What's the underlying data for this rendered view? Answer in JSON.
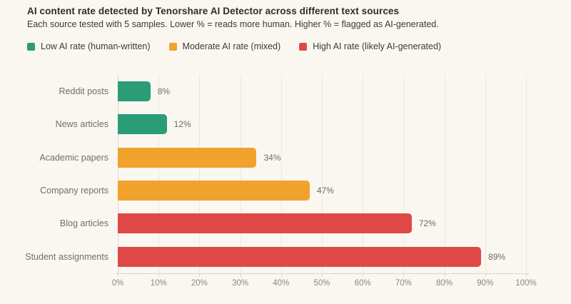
{
  "header": {
    "title": "AI content rate detected by Tenorshare AI Detector across different text sources",
    "subtitle": "Each source tested with 5 samples. Lower % = reads more human. Higher % = flagged as AI-generated."
  },
  "legend": [
    {
      "label": "Low AI rate (human-written)",
      "color": "#2a9d78"
    },
    {
      "label": "Moderate AI rate (mixed)",
      "color": "#f0a22c"
    },
    {
      "label": "High AI rate (likely AI-generated)",
      "color": "#e04848"
    }
  ],
  "colors": {
    "background": "#faf7f1",
    "low": "#2a9d78",
    "moderate": "#f0a22c",
    "high": "#e04848"
  },
  "chart_data": {
    "type": "bar",
    "orientation": "horizontal",
    "title": "AI content rate detected by Tenorshare AI Detector across different text sources",
    "subtitle": "Each source tested with 5 samples. Lower % = reads more human. Higher % = flagged as AI-generated.",
    "categories": [
      "Reddit posts",
      "News articles",
      "Academic papers",
      "Company reports",
      "Blog articles",
      "Student assignments"
    ],
    "values": [
      8,
      12,
      34,
      47,
      72,
      89
    ],
    "value_labels": [
      "8%",
      "12%",
      "34%",
      "47%",
      "72%",
      "89%"
    ],
    "bar_colors": [
      "#2a9d78",
      "#2a9d78",
      "#f0a22c",
      "#f0a22c",
      "#e04848",
      "#e04848"
    ],
    "bar_series": [
      "Low AI rate (human-written)",
      "Low AI rate (human-written)",
      "Moderate AI rate (mixed)",
      "Moderate AI rate (mixed)",
      "High AI rate (likely AI-generated)",
      "High AI rate (likely AI-generated)"
    ],
    "xlabel": "",
    "ylabel": "",
    "xlim": [
      0,
      100
    ],
    "x_tick_step": 10,
    "x_ticks": [
      "0%",
      "10%",
      "20%",
      "30%",
      "40%",
      "50%",
      "60%",
      "70%",
      "80%",
      "90%",
      "100%"
    ],
    "grid": "vertical",
    "legend_position": "top-left"
  }
}
